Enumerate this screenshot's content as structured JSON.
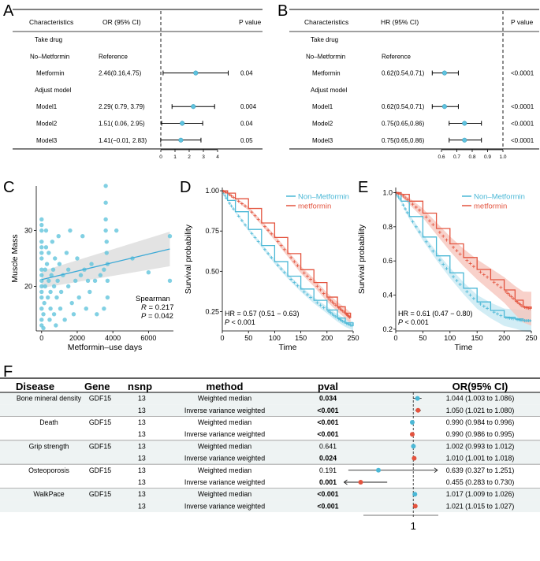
{
  "panels": {
    "A": "A",
    "B": "B",
    "C": "C",
    "D": "D",
    "E": "E",
    "F": "F"
  },
  "colors": {
    "blue": "#4bb8d6",
    "red": "#e3533e",
    "point": "#5ec3df",
    "shade_blue": "#c7e9f2",
    "shade_red": "#f6c6bd",
    "scatter": "#62c4dc",
    "fit": "#3aa9d6",
    "band": "#d9d9d9",
    "stripe": "#eef3f3"
  },
  "chart_data": [
    {
      "type": "table",
      "panel": "A",
      "headers": {
        "char": "Characteristics",
        "est": "OR (95% CI)",
        "p": "P value"
      },
      "rows": [
        {
          "label": "Take drug",
          "est": "",
          "p": "",
          "ci": null
        },
        {
          "label": "No–Metformin",
          "est": "Reference",
          "p": "",
          "ci": null
        },
        {
          "label": "Metformin",
          "est": "2.46(0.16,4.75)",
          "p": "0.04",
          "ci": [
            2.46,
            0.16,
            4.75
          ]
        },
        {
          "label": "Adjust model",
          "est": "",
          "p": "",
          "ci": null
        },
        {
          "label": "Model1",
          "est": "2.29( 0.79, 3.79)",
          "p": "0.004",
          "ci": [
            2.29,
            0.79,
            3.79
          ]
        },
        {
          "label": "Model2",
          "est": "1.51( 0.06, 2.95)",
          "p": "0.04",
          "ci": [
            1.51,
            0.06,
            2.95
          ]
        },
        {
          "label": "Model3",
          "est": "1.41(−0.01, 2.83)",
          "p": "0.05",
          "ci": [
            1.41,
            -0.01,
            2.83
          ]
        }
      ],
      "xticks": [
        0,
        1,
        2,
        3,
        4
      ],
      "ref": 0
    },
    {
      "type": "table",
      "panel": "B",
      "headers": {
        "char": "Characteristics",
        "est": "HR (95% CI)",
        "p": "P value"
      },
      "rows": [
        {
          "label": "Take drug",
          "est": "",
          "p": "",
          "ci": null
        },
        {
          "label": "No–Metformin",
          "est": "Reference",
          "p": "",
          "ci": null
        },
        {
          "label": "Metformin",
          "est": "0.62(0.54,0.71)",
          "p": "<0.0001",
          "ci": [
            0.62,
            0.54,
            0.71
          ]
        },
        {
          "label": "Adjust model",
          "est": "",
          "p": "",
          "ci": null
        },
        {
          "label": "Model1",
          "est": "0.62(0.54,0.71)",
          "p": "<0.0001",
          "ci": [
            0.62,
            0.54,
            0.71
          ]
        },
        {
          "label": "Model2",
          "est": "0.75(0.65,0.86)",
          "p": "<0.0001",
          "ci": [
            0.75,
            0.65,
            0.86
          ]
        },
        {
          "label": "Model3",
          "est": "0.75(0.65,0.86)",
          "p": "<0.0001",
          "ci": [
            0.75,
            0.65,
            0.86
          ]
        }
      ],
      "xticks": [
        0.6,
        0.7,
        0.8,
        0.9,
        1.0
      ],
      "xticklabels": [
        "0.6",
        "0.7",
        "0.8",
        "0.9",
        "1.0"
      ],
      "ref": 1.0
    },
    {
      "type": "scatter",
      "panel": "C",
      "xlabel": "Metformin–use days",
      "ylabel": "Muscle Mass",
      "xlim": [
        -300,
        7400
      ],
      "ylim": [
        12,
        38
      ],
      "xticks": [
        0,
        2000,
        4000,
        6000
      ],
      "yticks": [
        20,
        30
      ],
      "annotation": {
        "method": "Spearman",
        "r_label": "R",
        "r_value": " = 0.217",
        "p_label": "P",
        "p_value": " = 0.042"
      },
      "fit": {
        "x0": 0,
        "y0": 21.2,
        "x1": 7200,
        "y1": 26.7,
        "band_lo0": 19.7,
        "band_hi0": 22.7,
        "band_lo1": 23.6,
        "band_hi1": 29.8
      },
      "points": [
        [
          0,
          13
        ],
        [
          0,
          14
        ],
        [
          0,
          16
        ],
        [
          0,
          18
        ],
        [
          0,
          19
        ],
        [
          0,
          20
        ],
        [
          0,
          21
        ],
        [
          0,
          22
        ],
        [
          0,
          23
        ],
        [
          0,
          25
        ],
        [
          0,
          26
        ],
        [
          0,
          27
        ],
        [
          0,
          28
        ],
        [
          0,
          30
        ],
        [
          0,
          31
        ],
        [
          0,
          32
        ],
        [
          100,
          12.5
        ],
        [
          100,
          15
        ],
        [
          150,
          17
        ],
        [
          200,
          20
        ],
        [
          200,
          23
        ],
        [
          250,
          27
        ],
        [
          250,
          30
        ],
        [
          300,
          24
        ],
        [
          350,
          18
        ],
        [
          400,
          21
        ],
        [
          400,
          26
        ],
        [
          450,
          14
        ],
        [
          500,
          16
        ],
        [
          500,
          19
        ],
        [
          550,
          22
        ],
        [
          600,
          28
        ],
        [
          650,
          23
        ],
        [
          700,
          15
        ],
        [
          700,
          20
        ],
        [
          750,
          25
        ],
        [
          800,
          13
        ],
        [
          850,
          18
        ],
        [
          900,
          21
        ],
        [
          950,
          29
        ],
        [
          1000,
          24
        ],
        [
          1050,
          16
        ],
        [
          1100,
          19
        ],
        [
          1200,
          22
        ],
        [
          1300,
          14
        ],
        [
          1400,
          26
        ],
        [
          1500,
          20
        ],
        [
          1500,
          23
        ],
        [
          1600,
          30
        ],
        [
          1700,
          17
        ],
        [
          1800,
          15
        ],
        [
          1900,
          21
        ],
        [
          2000,
          25
        ],
        [
          2100,
          18
        ],
        [
          2200,
          22
        ],
        [
          2300,
          29
        ],
        [
          2400,
          23
        ],
        [
          2500,
          16
        ],
        [
          2600,
          21
        ],
        [
          2700,
          19
        ],
        [
          2800,
          24
        ],
        [
          3000,
          21
        ],
        [
          3100,
          15
        ],
        [
          3300,
          22
        ],
        [
          3500,
          16
        ],
        [
          3500,
          23
        ],
        [
          3600,
          38
        ],
        [
          3600,
          35
        ],
        [
          3600,
          32
        ],
        [
          3600,
          30
        ],
        [
          3650,
          28
        ],
        [
          3650,
          26
        ],
        [
          3700,
          24
        ],
        [
          3700,
          21
        ],
        [
          3700,
          18
        ],
        [
          4200,
          30
        ],
        [
          5100,
          25
        ],
        [
          6000,
          22.5
        ],
        [
          7200,
          29
        ],
        [
          7200,
          21
        ]
      ]
    },
    {
      "type": "line",
      "panel": "D",
      "xlabel": "Time",
      "ylabel": "Survival probability",
      "xlim": [
        0,
        250
      ],
      "ylim": [
        0.13,
        1.02
      ],
      "xticks": [
        0,
        50,
        100,
        150,
        200,
        250
      ],
      "yticks": [
        0.25,
        0.5,
        0.75,
        1.0
      ],
      "yticklabels": [
        "0.25",
        "0.50",
        "0.75",
        "1.00"
      ],
      "hr_text": "HR = 0.57 (0.51 − 0.63)",
      "p_label": "P",
      "p_text": " < 0.001",
      "series": [
        {
          "name": "Non–Metformin",
          "color": "#4bb8d6",
          "x": [
            0,
            10,
            25,
            50,
            75,
            100,
            125,
            150,
            175,
            200,
            220,
            235,
            250
          ],
          "y": [
            1.0,
            0.94,
            0.87,
            0.76,
            0.66,
            0.56,
            0.47,
            0.39,
            0.32,
            0.26,
            0.21,
            0.18,
            0.16
          ],
          "band": 0.015
        },
        {
          "name": "metformin",
          "color": "#e3533e",
          "x": [
            0,
            10,
            25,
            50,
            75,
            100,
            125,
            150,
            175,
            200,
            220,
            235,
            245
          ],
          "y": [
            1.0,
            0.985,
            0.95,
            0.89,
            0.8,
            0.71,
            0.61,
            0.51,
            0.43,
            0.34,
            0.28,
            0.24,
            0.21
          ],
          "band": 0.02
        }
      ]
    },
    {
      "type": "line",
      "panel": "E",
      "xlabel": "Time",
      "ylabel": "Survival probability",
      "xlim": [
        0,
        250
      ],
      "ylim": [
        0.19,
        1.03
      ],
      "xticks": [
        0,
        50,
        100,
        150,
        200,
        250
      ],
      "yticks": [
        0.2,
        0.4,
        0.6,
        0.8,
        1.0
      ],
      "yticklabels": [
        "0.2",
        "0.4",
        "0.6",
        "0.8",
        "1.0"
      ],
      "hr_text": "HR = 0.61 (0.47 − 0.80)",
      "p_label": "P",
      "p_text": " < 0.001",
      "series": [
        {
          "name": "Non–Metformin",
          "color": "#4bb8d6",
          "x": [
            0,
            10,
            25,
            50,
            75,
            100,
            125,
            150,
            175,
            200,
            220,
            235,
            250
          ],
          "y": [
            1.0,
            0.95,
            0.86,
            0.74,
            0.63,
            0.53,
            0.44,
            0.36,
            0.31,
            0.27,
            0.26,
            0.25,
            0.25
          ],
          "band": 0.04
        },
        {
          "name": "metformin",
          "color": "#e3533e",
          "x": [
            0,
            10,
            25,
            50,
            75,
            100,
            125,
            150,
            175,
            200,
            220,
            235,
            250
          ],
          "y": [
            1.0,
            0.99,
            0.95,
            0.88,
            0.79,
            0.7,
            0.62,
            0.55,
            0.49,
            0.43,
            0.37,
            0.33,
            0.32
          ],
          "band": 0.06
        }
      ]
    },
    {
      "type": "table",
      "panel": "F",
      "headers": {
        "disease": "Disease",
        "gene": "Gene",
        "nsnp": "nsnp",
        "method": "method",
        "pval": "pval",
        "or": "OR(95% CI)"
      },
      "ref_label": "1",
      "rows": [
        {
          "disease": "Bone mineral density",
          "gene": "GDF15",
          "nsnp": "13",
          "method": "Weighted median",
          "pval": "0.034",
          "bold": true,
          "or": "1.044 (1.003 to 1.086)",
          "ci": [
            1.044,
            1.003,
            1.086
          ]
        },
        {
          "disease": "",
          "gene": "",
          "nsnp": "13",
          "method": "Inverse variance weighted",
          "pval": "<0.001",
          "bold": true,
          "or": "1.050 (1.021 to 1.080)",
          "ci": [
            1.05,
            1.021,
            1.08
          ]
        },
        {
          "disease": "Death",
          "gene": "GDF15",
          "nsnp": "13",
          "method": "Weighted median",
          "pval": "<0.001",
          "bold": true,
          "or": "0.990 (0.984 to 0.996)",
          "ci": [
            0.99,
            0.984,
            0.996
          ]
        },
        {
          "disease": "",
          "gene": "",
          "nsnp": "13",
          "method": "Inverse variance weighted",
          "pval": "<0.001",
          "bold": true,
          "or": "0.990 (0.986 to 0.995)",
          "ci": [
            0.99,
            0.986,
            0.995
          ]
        },
        {
          "disease": "Grip strength",
          "gene": "GDF15",
          "nsnp": "13",
          "method": "Weighted median",
          "pval": "0.641",
          "bold": false,
          "or": "1.002 (0.993 to 1.012)",
          "ci": [
            1.002,
            0.993,
            1.012
          ]
        },
        {
          "disease": "",
          "gene": "",
          "nsnp": "13",
          "method": "Inverse variance weighted",
          "pval": "0.024",
          "bold": true,
          "or": "1.010 (1.001 to 1.018)",
          "ci": [
            1.01,
            1.001,
            1.018
          ]
        },
        {
          "disease": "Osteoporosis",
          "gene": "GDF15",
          "nsnp": "13",
          "method": "Weighted median",
          "pval": "0.191",
          "bold": false,
          "or": "0.639 (0.327 to 1.251)",
          "ci": [
            0.639,
            0.327,
            1.251
          ]
        },
        {
          "disease": "",
          "gene": "",
          "nsnp": "13",
          "method": "Inverse variance weighted",
          "pval": "0.001",
          "bold": true,
          "or": "0.455 (0.283 to 0.730)",
          "ci": [
            0.455,
            0.283,
            0.73
          ]
        },
        {
          "disease": "WalkPace",
          "gene": "GDF15",
          "nsnp": "13",
          "method": "Weighted median",
          "pval": "<0.001",
          "bold": true,
          "or": "1.017 (1.009 to 1.026)",
          "ci": [
            1.017,
            1.009,
            1.026
          ]
        },
        {
          "disease": "",
          "gene": "",
          "nsnp": "13",
          "method": "Inverse variance weighted",
          "pval": "<0.001",
          "bold": true,
          "or": "1.021 (1.015 to 1.027)",
          "ci": [
            1.021,
            1.015,
            1.027
          ]
        }
      ]
    }
  ]
}
